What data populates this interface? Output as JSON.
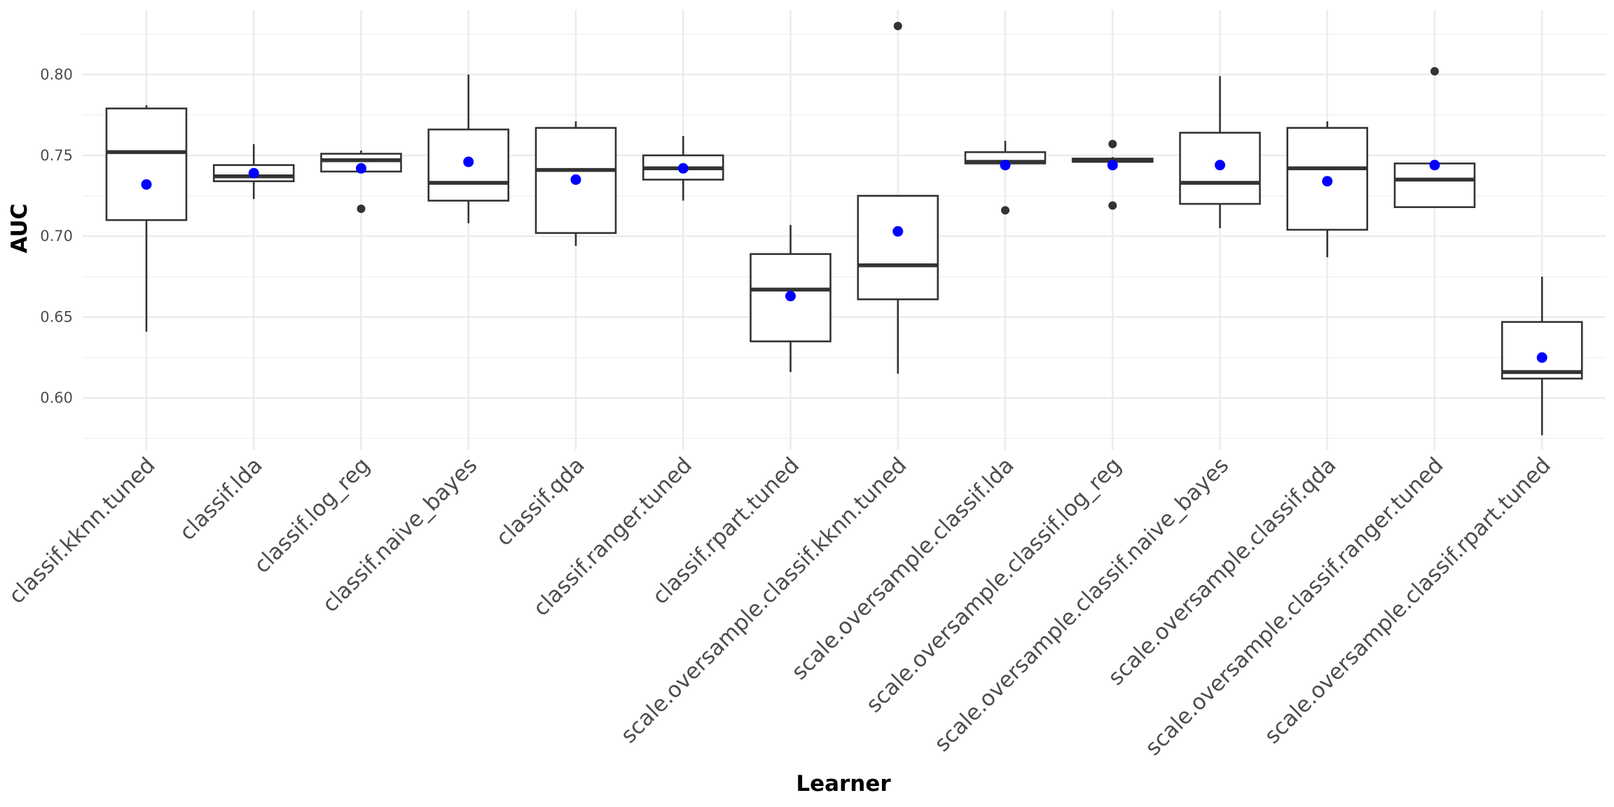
{
  "chart_data": {
    "type": "box",
    "title": "",
    "xlabel": "Learner",
    "ylabel": "AUC",
    "ylim": [
      0.568,
      0.84
    ],
    "yticks": [
      0.6,
      0.65,
      0.7,
      0.75,
      0.8
    ],
    "ytick_labels": [
      "0.60",
      "0.65",
      "0.70",
      "0.75",
      "0.80"
    ],
    "grid": true,
    "legend": "none",
    "box_color": "#333333",
    "mean_color": "#0000ff",
    "categories": [
      "classif.kknn.tuned",
      "classif.lda",
      "classif.log_reg",
      "classif.naive_bayes",
      "classif.qda",
      "classif.ranger.tuned",
      "classif.rpart.tuned",
      "scale.oversample.classif.kknn.tuned",
      "scale.oversample.classif.lda",
      "scale.oversample.classif.log_reg",
      "scale.oversample.classif.naive_bayes",
      "scale.oversample.classif.qda",
      "scale.oversample.classif.ranger.tuned",
      "scale.oversample.classif.rpart.tuned"
    ],
    "boxes": [
      {
        "whisker_low": 0.641,
        "q1": 0.71,
        "median": 0.752,
        "q3": 0.779,
        "whisker_high": 0.781,
        "mean": 0.732,
        "outliers": []
      },
      {
        "whisker_low": 0.723,
        "q1": 0.734,
        "median": 0.737,
        "q3": 0.744,
        "whisker_high": 0.757,
        "mean": 0.739,
        "outliers": []
      },
      {
        "whisker_low": 0.74,
        "q1": 0.74,
        "median": 0.747,
        "q3": 0.751,
        "whisker_high": 0.753,
        "mean": 0.742,
        "outliers": [
          0.717
        ]
      },
      {
        "whisker_low": 0.708,
        "q1": 0.722,
        "median": 0.733,
        "q3": 0.766,
        "whisker_high": 0.8,
        "mean": 0.746,
        "outliers": []
      },
      {
        "whisker_low": 0.694,
        "q1": 0.702,
        "median": 0.741,
        "q3": 0.767,
        "whisker_high": 0.771,
        "mean": 0.735,
        "outliers": []
      },
      {
        "whisker_low": 0.722,
        "q1": 0.735,
        "median": 0.742,
        "q3": 0.75,
        "whisker_high": 0.762,
        "mean": 0.742,
        "outliers": []
      },
      {
        "whisker_low": 0.616,
        "q1": 0.635,
        "median": 0.667,
        "q3": 0.689,
        "whisker_high": 0.707,
        "mean": 0.663,
        "outliers": []
      },
      {
        "whisker_low": 0.615,
        "q1": 0.661,
        "median": 0.682,
        "q3": 0.725,
        "whisker_high": 0.725,
        "mean": 0.703,
        "outliers": [
          0.83
        ]
      },
      {
        "whisker_low": 0.745,
        "q1": 0.745,
        "median": 0.746,
        "q3": 0.752,
        "whisker_high": 0.759,
        "mean": 0.744,
        "outliers": [
          0.716
        ]
      },
      {
        "whisker_low": 0.746,
        "q1": 0.746,
        "median": 0.747,
        "q3": 0.748,
        "whisker_high": 0.749,
        "mean": 0.744,
        "outliers": [
          0.719,
          0.757
        ]
      },
      {
        "whisker_low": 0.705,
        "q1": 0.72,
        "median": 0.733,
        "q3": 0.764,
        "whisker_high": 0.799,
        "mean": 0.744,
        "outliers": []
      },
      {
        "whisker_low": 0.687,
        "q1": 0.704,
        "median": 0.742,
        "q3": 0.767,
        "whisker_high": 0.771,
        "mean": 0.734,
        "outliers": []
      },
      {
        "whisker_low": 0.718,
        "q1": 0.718,
        "median": 0.735,
        "q3": 0.745,
        "whisker_high": 0.745,
        "mean": 0.744,
        "outliers": [
          0.802
        ]
      },
      {
        "whisker_low": 0.577,
        "q1": 0.612,
        "median": 0.616,
        "q3": 0.647,
        "whisker_high": 0.675,
        "mean": 0.625,
        "outliers": []
      }
    ]
  }
}
